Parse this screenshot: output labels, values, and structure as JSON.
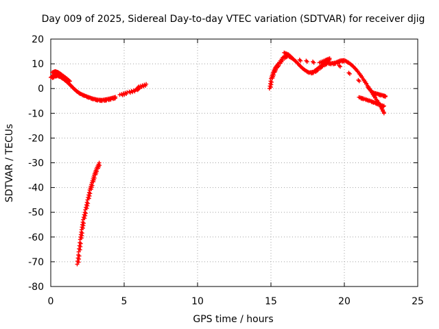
{
  "chart_data": {
    "type": "scatter",
    "title": "Day 009 of 2025, Sidereal Day-to-day VTEC variation (SDTVAR) for receiver djig",
    "xlabel": "GPS time / hours",
    "ylabel": "SDTVAR / TECUs",
    "xlim": [
      0,
      25
    ],
    "ylim": [
      -80,
      20
    ],
    "x_ticks": [
      0,
      5,
      10,
      15,
      20,
      25
    ],
    "y_ticks": [
      -80,
      -70,
      -60,
      -50,
      -40,
      -30,
      -20,
      -10,
      0,
      10,
      20
    ],
    "grid": true,
    "marker": "+",
    "color": "#ff0000",
    "segments": [
      {
        "name": "arc-1",
        "points": [
          [
            0.0,
            4.5
          ],
          [
            0.2,
            5.2
          ],
          [
            0.4,
            5.5
          ],
          [
            0.6,
            5.0
          ],
          [
            0.8,
            4.2
          ],
          [
            1.0,
            3.3
          ],
          [
            1.2,
            2.2
          ],
          [
            1.4,
            1.0
          ],
          [
            1.6,
            -0.2
          ],
          [
            1.8,
            -1.2
          ],
          [
            2.0,
            -2.0
          ],
          [
            2.3,
            -2.8
          ],
          [
            2.6,
            -3.5
          ],
          [
            2.9,
            -4.1
          ],
          [
            3.2,
            -4.5
          ],
          [
            3.5,
            -4.6
          ],
          [
            3.8,
            -4.3
          ],
          [
            4.1,
            -3.9
          ],
          [
            4.4,
            -3.4
          ]
        ]
      },
      {
        "name": "arc-1-upper",
        "points": [
          [
            0.1,
            6.5
          ],
          [
            0.3,
            7.0
          ],
          [
            0.5,
            6.6
          ],
          [
            0.7,
            5.8
          ],
          [
            1.0,
            4.5
          ],
          [
            1.3,
            3.0
          ]
        ]
      },
      {
        "name": "arc-1-tail",
        "points": [
          [
            4.7,
            -2.5
          ],
          [
            5.2,
            -1.5
          ],
          [
            5.8,
            -0.5
          ],
          [
            6.0,
            0.8
          ],
          [
            6.5,
            1.8
          ]
        ]
      },
      {
        "name": "arc-2-drop",
        "points": [
          [
            1.8,
            -71.0
          ],
          [
            1.9,
            -66.0
          ],
          [
            2.0,
            -61.0
          ],
          [
            2.1,
            -57.0
          ],
          [
            2.2,
            -53.0
          ],
          [
            2.35,
            -49.0
          ],
          [
            2.5,
            -45.0
          ],
          [
            2.65,
            -41.0
          ],
          [
            2.8,
            -38.0
          ],
          [
            2.95,
            -35.0
          ],
          [
            3.1,
            -32.5
          ],
          [
            3.3,
            -30.0
          ]
        ]
      },
      {
        "name": "arc-3",
        "points": [
          [
            14.9,
            0.0
          ],
          [
            15.0,
            4.0
          ],
          [
            15.15,
            6.5
          ],
          [
            15.3,
            8.5
          ],
          [
            15.5,
            10.0
          ],
          [
            15.8,
            12.5
          ],
          [
            16.1,
            13.5
          ],
          [
            16.4,
            12.5
          ],
          [
            16.7,
            11.0
          ],
          [
            17.0,
            9.0
          ],
          [
            17.3,
            7.5
          ],
          [
            17.6,
            6.5
          ],
          [
            17.9,
            6.8
          ],
          [
            18.2,
            8.2
          ],
          [
            18.5,
            9.6
          ],
          [
            18.8,
            10.5
          ],
          [
            19.1,
            10.2
          ],
          [
            19.4,
            10.5
          ],
          [
            19.7,
            11.3
          ],
          [
            20.0,
            11.5
          ],
          [
            20.3,
            10.5
          ],
          [
            20.6,
            9.0
          ],
          [
            20.9,
            7.0
          ],
          [
            21.2,
            4.5
          ],
          [
            21.5,
            1.8
          ],
          [
            21.8,
            -1.0
          ],
          [
            22.1,
            -3.8
          ],
          [
            22.4,
            -6.5
          ],
          [
            22.7,
            -10.0
          ]
        ]
      },
      {
        "name": "arc-3-upper",
        "points": [
          [
            15.9,
            14.5
          ],
          [
            16.2,
            13.8
          ],
          [
            16.5,
            12.0
          ],
          [
            18.3,
            10.5
          ],
          [
            18.7,
            11.5
          ],
          [
            19.0,
            12.2
          ],
          [
            21.6,
            0.5
          ],
          [
            21.9,
            -1.5
          ],
          [
            22.2,
            -2.0
          ],
          [
            22.5,
            -2.5
          ],
          [
            22.8,
            -3.0
          ]
        ]
      },
      {
        "name": "arc-3-lower",
        "points": [
          [
            21.0,
            -3.5
          ],
          [
            21.3,
            -4.0
          ],
          [
            21.7,
            -4.8
          ],
          [
            22.0,
            -5.5
          ],
          [
            22.3,
            -6.2
          ],
          [
            22.7,
            -7.0
          ]
        ]
      }
    ]
  }
}
